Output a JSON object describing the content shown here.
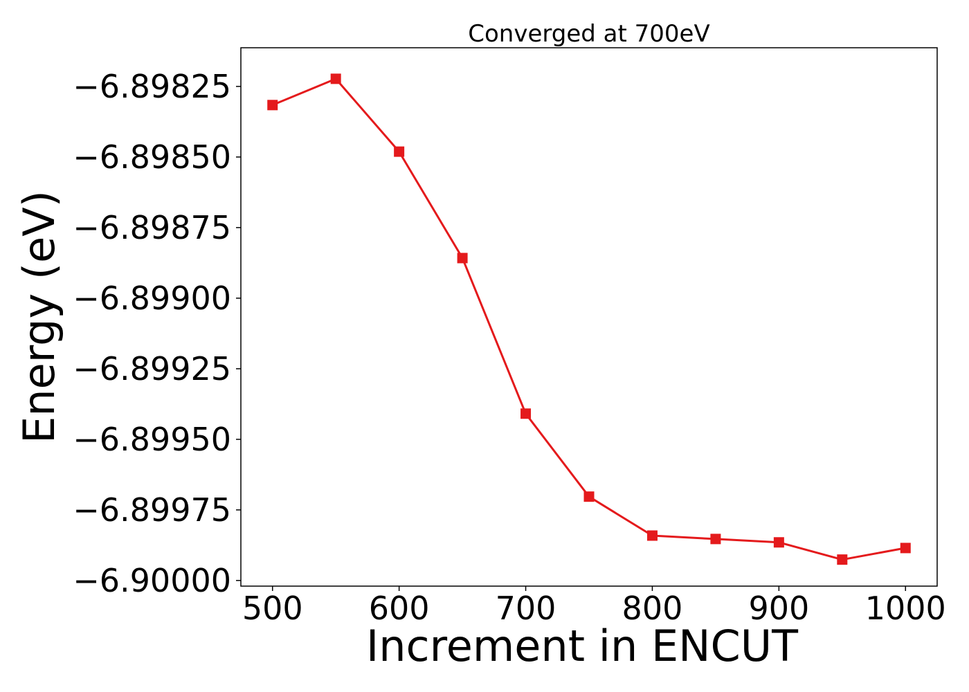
{
  "chart_data": {
    "type": "line",
    "title": "Converged at 700eV",
    "xlabel": "Increment in ENCUT",
    "ylabel": "Energy (eV)",
    "xlim": [
      475,
      1025
    ],
    "ylim": [
      -6.90002,
      -6.898113
    ],
    "x_ticks": [
      500,
      600,
      700,
      800,
      900,
      1000
    ],
    "x_tick_labels": [
      "500",
      "600",
      "700",
      "800",
      "900",
      "1000"
    ],
    "y_ticks": [
      -6.89825,
      -6.8985,
      -6.89875,
      -6.899,
      -6.89925,
      -6.8995,
      -6.89975,
      -6.9
    ],
    "y_tick_labels": [
      "−6.89825",
      "−6.89850",
      "−6.89875",
      "−6.89900",
      "−6.89925",
      "−6.89950",
      "−6.89975",
      "−6.90000"
    ],
    "grid": false,
    "series": [
      {
        "color": "#e41a1c",
        "marker": "square",
        "x": [
          500,
          550,
          600,
          650,
          700,
          750,
          800,
          850,
          900,
          950,
          1000
        ],
        "y": [
          -6.898316,
          -6.898223,
          -6.898481,
          -6.898858,
          -6.899409,
          -6.899703,
          -6.899841,
          -6.899853,
          -6.899865,
          -6.899926,
          -6.899885
        ]
      }
    ]
  }
}
